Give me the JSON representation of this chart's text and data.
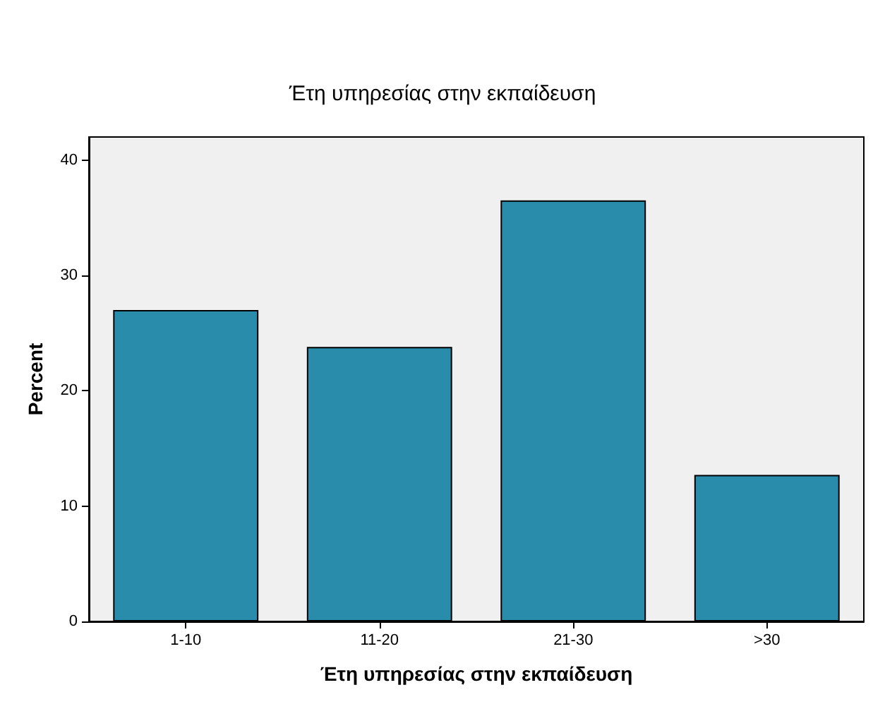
{
  "chart_data": {
    "type": "bar",
    "title": "Έτη υπηρεσίας στην εκπαίδευση",
    "xlabel": "Έτη υπηρεσίας στην εκπαίδευση",
    "ylabel": "Percent",
    "categories": [
      "1-10",
      "11-20",
      "21-30",
      ">30"
    ],
    "values": [
      27.0,
      23.8,
      36.5,
      12.7
    ],
    "color": "#2a8cab",
    "ylim": [
      0,
      42
    ],
    "yticks": [
      0,
      10,
      20,
      30,
      40
    ],
    "grid": false
  }
}
